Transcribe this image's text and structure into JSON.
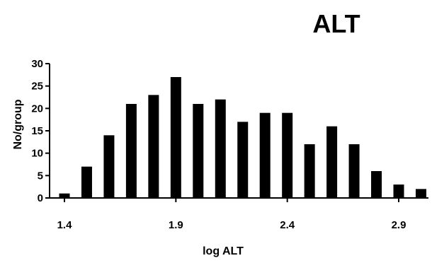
{
  "chart_data": {
    "type": "bar",
    "title": "ALT",
    "xlabel": "log ALT",
    "ylabel": "No/group",
    "ylim": [
      0,
      30
    ],
    "yticks": [
      0,
      5,
      10,
      15,
      20,
      25,
      30
    ],
    "xlim": [
      1.35,
      3.05
    ],
    "xticks": [
      1.4,
      1.9,
      2.4,
      2.9
    ],
    "xtick_labels": [
      "1.4",
      "1.9",
      "2.4",
      "2.9"
    ],
    "x": [
      1.4,
      1.5,
      1.6,
      1.7,
      1.8,
      1.9,
      2.0,
      2.1,
      2.2,
      2.3,
      2.4,
      2.5,
      2.6,
      2.7,
      2.8,
      2.9,
      3.0
    ],
    "values": [
      1,
      7,
      14,
      21,
      23,
      27,
      21,
      22,
      17,
      19,
      19,
      12,
      16,
      12,
      6,
      3,
      2
    ],
    "bar_color": "#000000",
    "grid": false,
    "legend": "none"
  }
}
